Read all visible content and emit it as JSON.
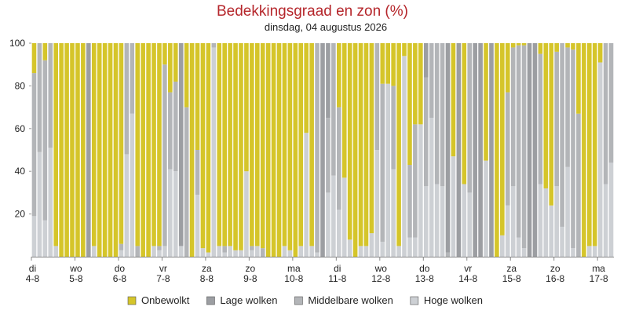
{
  "chart_data": {
    "type": "stacked-bar",
    "title": "Bedekkingsgraad en zon (%)",
    "subtitle": "dinsdag, 04 augustus 2026",
    "categories": [
      "di 4-8",
      null,
      null,
      null,
      null,
      null,
      null,
      null,
      "wo 5-8",
      null,
      null,
      null,
      null,
      null,
      null,
      null,
      "do 6-8",
      null,
      null,
      null,
      null,
      null,
      null,
      null,
      "vr 7-8",
      null,
      null,
      null,
      null,
      null,
      null,
      null,
      "za 8-8",
      null,
      null,
      null,
      null,
      null,
      null,
      null,
      "zo 9-8",
      null,
      null,
      null,
      null,
      null,
      null,
      null,
      "ma 10-8",
      null,
      null,
      null,
      null,
      null,
      null,
      null,
      "di 11-8",
      null,
      null,
      null,
      null,
      null,
      null,
      null,
      "wo 12-8",
      null,
      null,
      null,
      null,
      null,
      null,
      null,
      "do 13-8",
      null,
      null,
      null,
      null,
      null,
      null,
      null,
      "vr 14-8",
      null,
      null,
      null,
      null,
      null,
      null,
      null,
      "za 15-8",
      null,
      null,
      null,
      null,
      null,
      null,
      null,
      "zo 16-8",
      null,
      null,
      null,
      null,
      null,
      null,
      null,
      "ma 17-8",
      null,
      null
    ],
    "series": [
      {
        "name": "Hoge wolken",
        "color": "#cdd0d4",
        "values": [
          19,
          49,
          17,
          51,
          5,
          0,
          0,
          0,
          0,
          0,
          0,
          5,
          0,
          0,
          0,
          0,
          3,
          48,
          67,
          0,
          0,
          0,
          5,
          3,
          5,
          41,
          40,
          5,
          0,
          0,
          29,
          4,
          2,
          98,
          5,
          2,
          5,
          3,
          3,
          40,
          3,
          5,
          0,
          0,
          0,
          0,
          5,
          3,
          0,
          5,
          58,
          5,
          2,
          0,
          30,
          38,
          22,
          37,
          8,
          0,
          5,
          5,
          11,
          50,
          7,
          81,
          41,
          5,
          94,
          9,
          9,
          62,
          33,
          65,
          34,
          33,
          0,
          47,
          0,
          34,
          30,
          0,
          0,
          45,
          0,
          0,
          10,
          24,
          33,
          9,
          4,
          0,
          0,
          34,
          32,
          24,
          33,
          14,
          42,
          4,
          0,
          0,
          5,
          5,
          91,
          34,
          44
        ]
      },
      {
        "name": "Middelbare wolken",
        "color": "#b3b5b8",
        "values": [
          67,
          51,
          75,
          49,
          0,
          0,
          0,
          0,
          0,
          0,
          0,
          0,
          0,
          0,
          0,
          0,
          3,
          52,
          33,
          5,
          0,
          0,
          0,
          2,
          85,
          36,
          42,
          0,
          70,
          0,
          21,
          0,
          0,
          2,
          0,
          3,
          0,
          0,
          0,
          0,
          2,
          0,
          4,
          0,
          0,
          0,
          0,
          0,
          0,
          0,
          0,
          0,
          98,
          0,
          35,
          62,
          48,
          0,
          0,
          0,
          0,
          0,
          0,
          50,
          74,
          0,
          39,
          0,
          0,
          34,
          53,
          0,
          51,
          35,
          66,
          67,
          2,
          0,
          0,
          0,
          70,
          0,
          0,
          0,
          0,
          0,
          0,
          53,
          65,
          90,
          95,
          0,
          0,
          61,
          0,
          0,
          63,
          86,
          56,
          93,
          67,
          0,
          0,
          0,
          0,
          66,
          56
        ]
      },
      {
        "name": "Lage wolken",
        "color": "#9c9ea2",
        "values": [
          0,
          0,
          0,
          0,
          0,
          0,
          0,
          0,
          0,
          0,
          100,
          0,
          0,
          0,
          0,
          0,
          0,
          0,
          0,
          0,
          0,
          0,
          0,
          0,
          0,
          0,
          0,
          95,
          0,
          0,
          0,
          0,
          0,
          0,
          0,
          0,
          0,
          0,
          0,
          0,
          0,
          0,
          0,
          0,
          0,
          0,
          0,
          0,
          0,
          0,
          0,
          0,
          0,
          100,
          35,
          0,
          0,
          0,
          0,
          0,
          0,
          0,
          0,
          0,
          0,
          0,
          0,
          0,
          0,
          0,
          0,
          0,
          16,
          0,
          0,
          0,
          98,
          0,
          100,
          0,
          0,
          100,
          100,
          0,
          100,
          0,
          0,
          0,
          0,
          0,
          0,
          100,
          100,
          0,
          0,
          0,
          0,
          0,
          0,
          0,
          0,
          0,
          0,
          0,
          0,
          0,
          0
        ]
      },
      {
        "name": "Onbewolkt",
        "color": "#d5c52a",
        "values": [
          14,
          0,
          8,
          0,
          95,
          100,
          100,
          100,
          100,
          100,
          0,
          95,
          100,
          100,
          100,
          100,
          94,
          0,
          0,
          95,
          100,
          100,
          95,
          95,
          10,
          23,
          18,
          0,
          30,
          100,
          50,
          96,
          98,
          0,
          95,
          95,
          95,
          97,
          97,
          60,
          95,
          95,
          96,
          100,
          100,
          100,
          95,
          97,
          100,
          95,
          42,
          95,
          0,
          0,
          0,
          0,
          30,
          63,
          92,
          100,
          95,
          95,
          89,
          0,
          19,
          19,
          20,
          95,
          6,
          57,
          38,
          38,
          0,
          0,
          0,
          0,
          0,
          53,
          0,
          66,
          0,
          0,
          0,
          55,
          0,
          100,
          90,
          23,
          2,
          1,
          1,
          0,
          0,
          5,
          68,
          76,
          4,
          0,
          2,
          3,
          33,
          100,
          95,
          95,
          9,
          0,
          0
        ]
      }
    ],
    "legend_order": [
      "Onbewolkt",
      "Lage wolken",
      "Middelbare wolken",
      "Hoge wolken"
    ],
    "ylim": [
      0,
      100
    ],
    "yticks": [
      20,
      40,
      60,
      80,
      100
    ]
  }
}
